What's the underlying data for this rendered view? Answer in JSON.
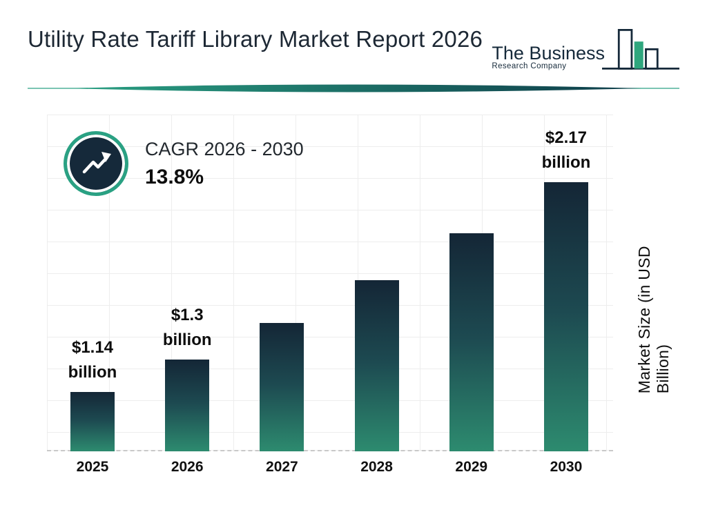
{
  "header": {
    "title": "Utility Rate Tariff Library Market Report 2026",
    "logo": {
      "line1": "The Business",
      "line2": "Research Company"
    }
  },
  "cagr": {
    "label": "CAGR 2026 - 2030",
    "value": "13.8%"
  },
  "chart_data": {
    "type": "bar",
    "title": "Utility Rate Tariff Library Market Report 2026",
    "categories": [
      "2025",
      "2026",
      "2027",
      "2028",
      "2029",
      "2030"
    ],
    "values": [
      1.14,
      1.3,
      1.48,
      1.69,
      1.92,
      2.17
    ],
    "unit": "USD Billion",
    "xlabel": "",
    "ylabel": "Market Size (in USD Billion)",
    "bar_labels": [
      "$1.14 billion",
      "$1.3 billion",
      null,
      null,
      null,
      "$2.17 billion"
    ],
    "cagr_value": "13.8%",
    "cagr_period": "2026 - 2030",
    "grid": true,
    "legend_position": "none",
    "bar_gradient": [
      "#142636",
      "#2d8b6f"
    ]
  },
  "colors": {
    "navy": "#15293a",
    "teal": "#2aa183",
    "bar_top": "#142636",
    "bar_bottom": "#2d8b6f",
    "title_text": "#1d2834"
  }
}
